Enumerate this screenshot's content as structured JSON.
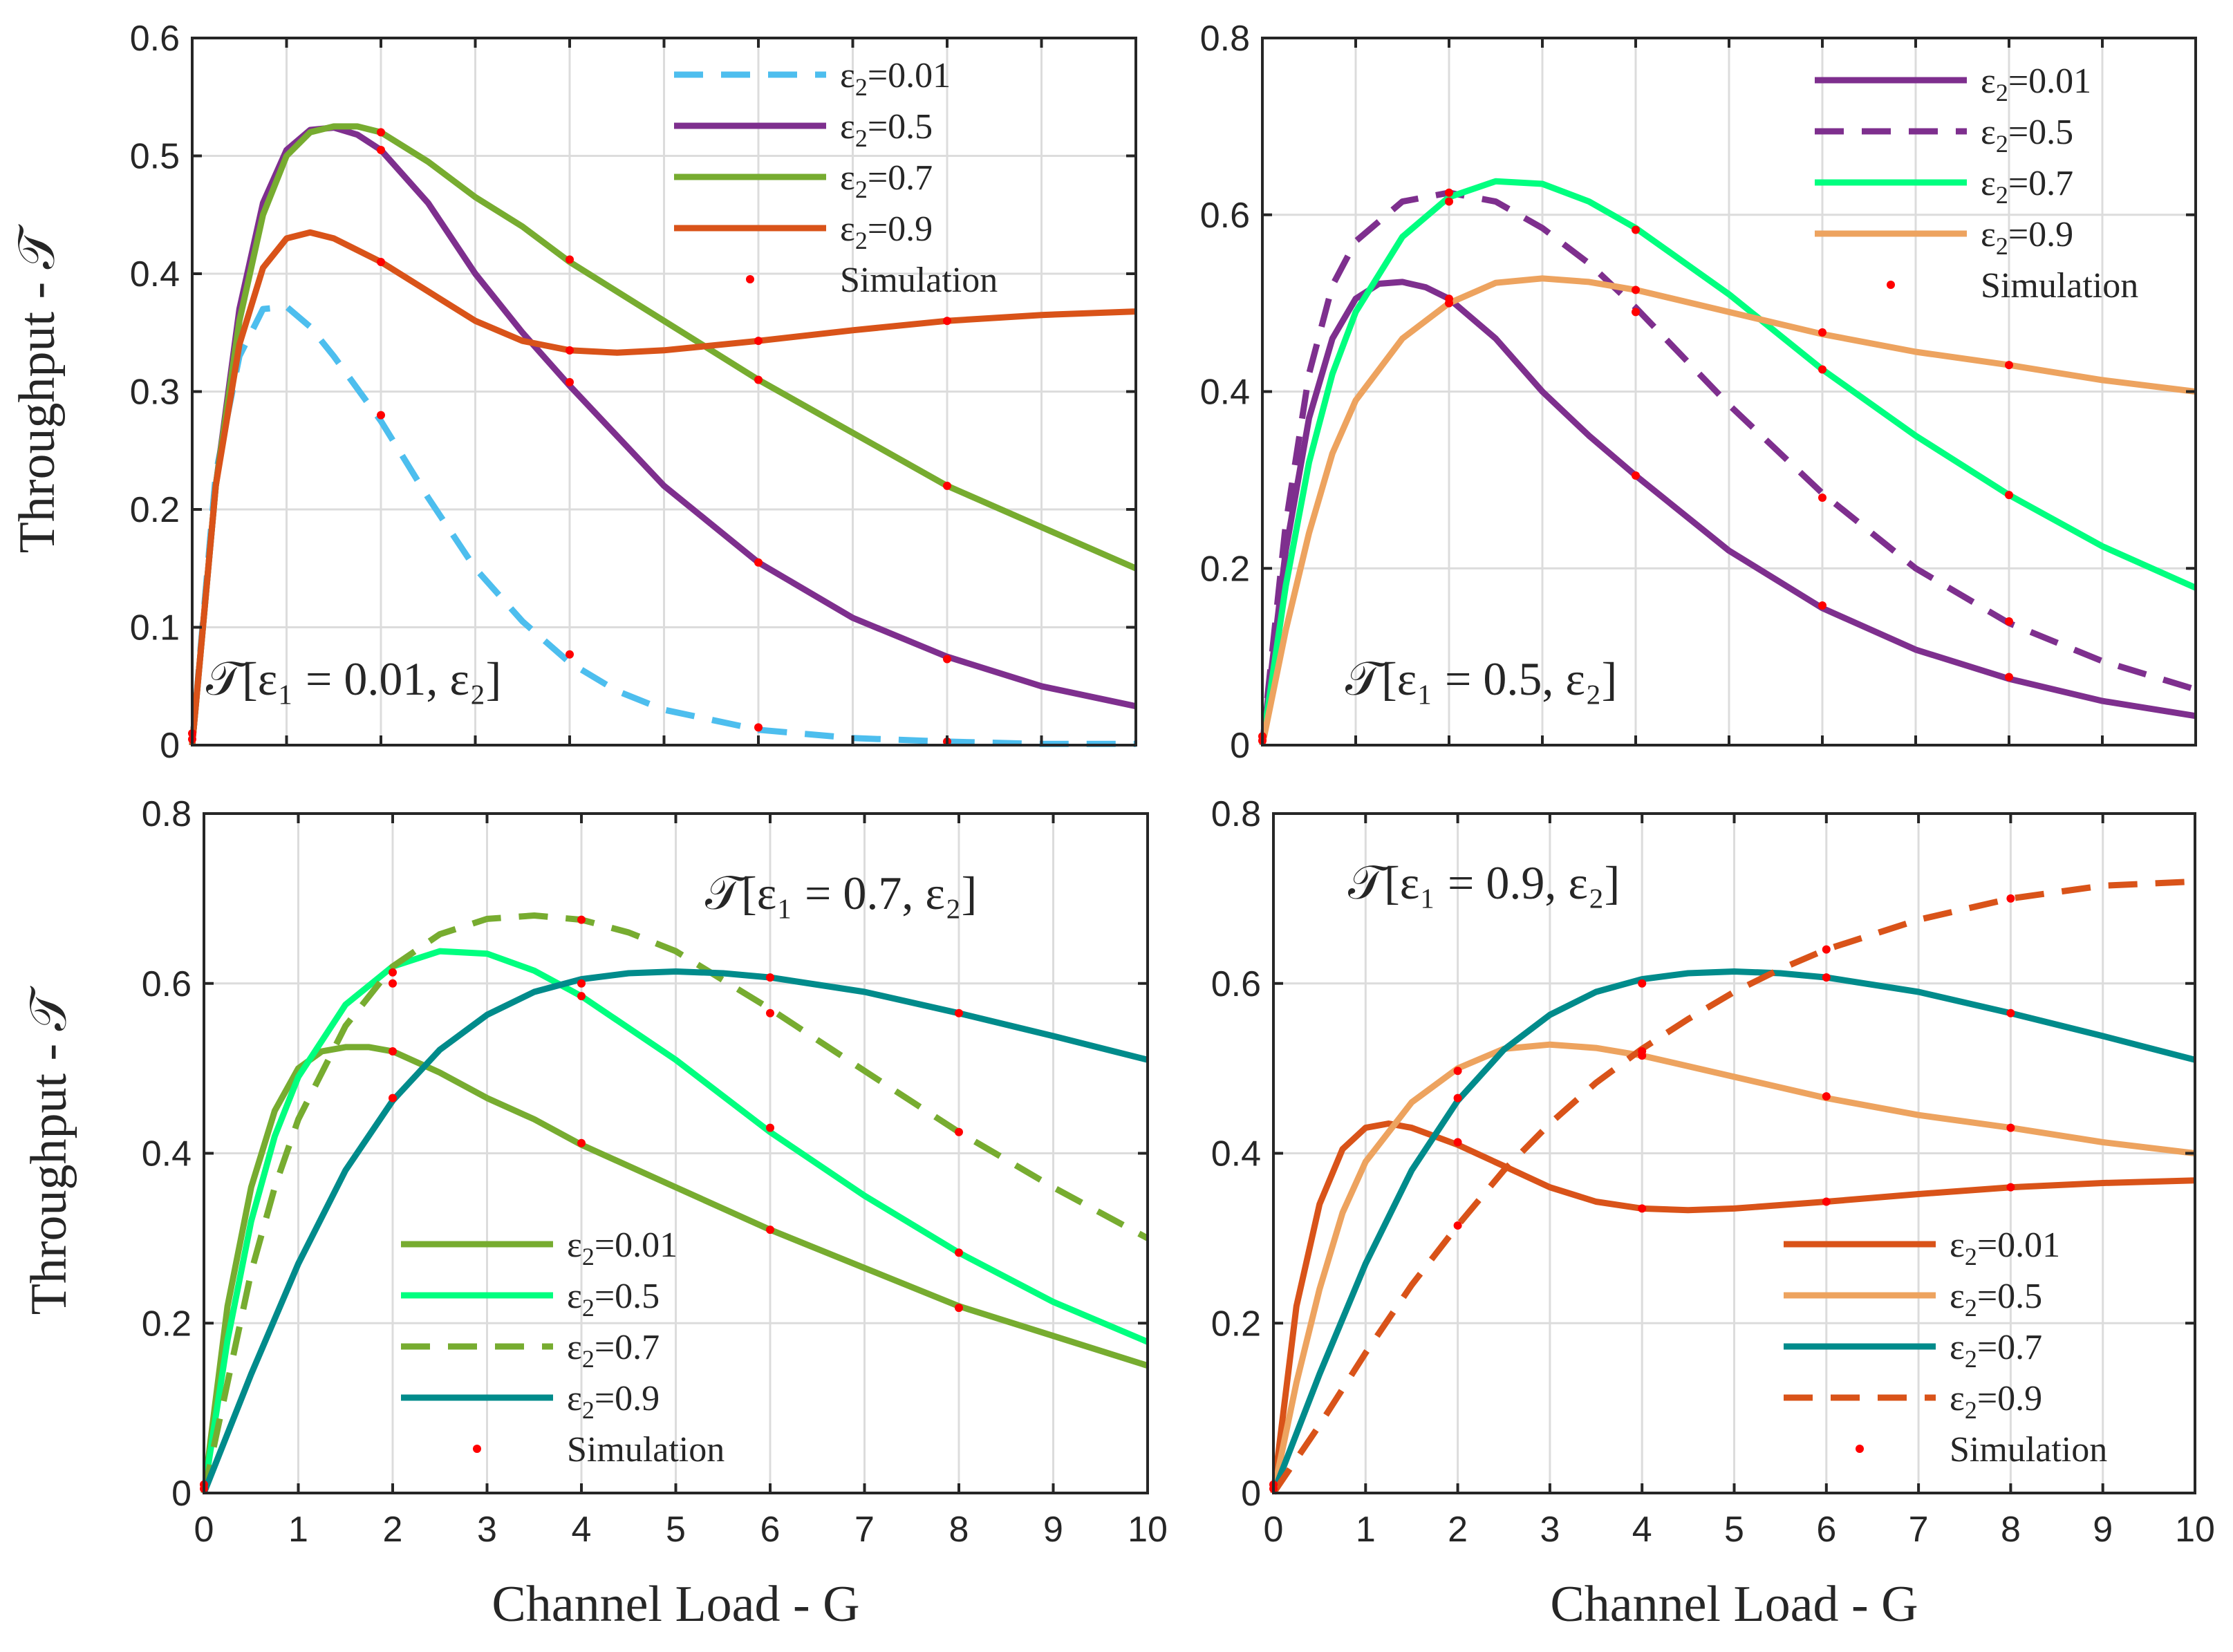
{
  "figure_title": "",
  "legend_prefix": "ε",
  "legend_subscript": "2",
  "legend_eq": "=",
  "chart_data": [
    {
      "type": "line",
      "annotation": "𝒯[ε₁ = 0.01, ε₂]",
      "title": "",
      "xlabel": "",
      "ylabel": "Throughput - 𝒯",
      "xlim": [
        0,
        10
      ],
      "ylim": [
        0,
        0.6
      ],
      "xticks": [
        0,
        1,
        2,
        3,
        4,
        5,
        6,
        7,
        8,
        9,
        10
      ],
      "yticks": [
        0,
        0.1,
        0.2,
        0.3,
        0.4,
        0.5,
        0.6
      ],
      "xtick_labels_shown": false,
      "legend_position": "top-right",
      "legend_simulation_label": "Simulation",
      "series": [
        {
          "name": "0.01",
          "color": "#4DBEEE",
          "style": "dashed",
          "x": [
            0,
            0.25,
            0.5,
            0.75,
            1,
            1.25,
            1.5,
            2,
            2.5,
            3,
            3.5,
            4,
            4.5,
            5,
            6,
            7,
            8,
            9,
            10
          ],
          "y": [
            0,
            0.23,
            0.33,
            0.37,
            0.372,
            0.355,
            0.33,
            0.275,
            0.21,
            0.15,
            0.105,
            0.07,
            0.046,
            0.03,
            0.013,
            0.006,
            0.003,
            0.001,
            0.001
          ]
        },
        {
          "name": "0.5",
          "color": "#7E2F8E",
          "style": "solid",
          "x": [
            0,
            0.25,
            0.5,
            0.75,
            1,
            1.25,
            1.5,
            1.75,
            2,
            2.5,
            3,
            3.5,
            4,
            5,
            6,
            7,
            8,
            9,
            10
          ],
          "y": [
            0,
            0.22,
            0.37,
            0.46,
            0.505,
            0.522,
            0.524,
            0.518,
            0.505,
            0.46,
            0.4,
            0.35,
            0.305,
            0.22,
            0.155,
            0.108,
            0.075,
            0.05,
            0.033
          ]
        },
        {
          "name": "0.7",
          "color": "#77AC30",
          "style": "solid",
          "x": [
            0,
            0.25,
            0.5,
            0.75,
            1,
            1.25,
            1.5,
            1.75,
            2,
            2.5,
            3,
            3.5,
            4,
            5,
            6,
            7,
            8,
            9,
            10
          ],
          "y": [
            0,
            0.22,
            0.36,
            0.45,
            0.5,
            0.52,
            0.525,
            0.525,
            0.52,
            0.495,
            0.465,
            0.44,
            0.41,
            0.36,
            0.31,
            0.265,
            0.22,
            0.185,
            0.15
          ]
        },
        {
          "name": "0.9",
          "color": "#D95319",
          "style": "solid",
          "x": [
            0,
            0.25,
            0.5,
            0.75,
            1,
            1.25,
            1.5,
            2,
            2.5,
            3,
            3.5,
            4,
            4.5,
            5,
            6,
            7,
            8,
            9,
            10
          ],
          "y": [
            0,
            0.22,
            0.34,
            0.405,
            0.43,
            0.435,
            0.43,
            0.41,
            0.385,
            0.36,
            0.343,
            0.335,
            0.333,
            0.335,
            0.343,
            0.352,
            0.36,
            0.365,
            0.368
          ]
        }
      ],
      "simulation_points": [
        {
          "x": 0,
          "y": 0.01
        },
        {
          "x": 0,
          "y": 0.005
        },
        {
          "x": 2,
          "y": 0.28
        },
        {
          "x": 2,
          "y": 0.41
        },
        {
          "x": 2,
          "y": 0.505
        },
        {
          "x": 2,
          "y": 0.52
        },
        {
          "x": 4,
          "y": 0.077
        },
        {
          "x": 4,
          "y": 0.308
        },
        {
          "x": 4,
          "y": 0.335
        },
        {
          "x": 4,
          "y": 0.412
        },
        {
          "x": 6,
          "y": 0.015
        },
        {
          "x": 6,
          "y": 0.155
        },
        {
          "x": 6,
          "y": 0.31
        },
        {
          "x": 6,
          "y": 0.343
        },
        {
          "x": 8,
          "y": 0.003
        },
        {
          "x": 8,
          "y": 0.073
        },
        {
          "x": 8,
          "y": 0.22
        },
        {
          "x": 8,
          "y": 0.36
        }
      ]
    },
    {
      "type": "line",
      "annotation": "𝒯[ε₁ = 0.5, ε₂]",
      "title": "",
      "xlabel": "",
      "ylabel": "",
      "xlim": [
        0,
        10
      ],
      "ylim": [
        0,
        0.8
      ],
      "xticks": [
        0,
        1,
        2,
        3,
        4,
        5,
        6,
        7,
        8,
        9,
        10
      ],
      "yticks": [
        0,
        0.2,
        0.4,
        0.6,
        0.8
      ],
      "xtick_labels_shown": false,
      "legend_position": "top-right",
      "legend_simulation_label": "Simulation",
      "series": [
        {
          "name": "0.01",
          "color": "#7E2F8E",
          "style": "solid",
          "x": [
            0,
            0.25,
            0.5,
            0.75,
            1,
            1.25,
            1.5,
            1.75,
            2,
            2.5,
            3,
            3.5,
            4,
            5,
            6,
            7,
            8,
            9,
            10
          ],
          "y": [
            0,
            0.22,
            0.37,
            0.46,
            0.505,
            0.522,
            0.524,
            0.518,
            0.505,
            0.46,
            0.4,
            0.35,
            0.305,
            0.22,
            0.155,
            0.108,
            0.075,
            0.05,
            0.033
          ]
        },
        {
          "name": "0.5",
          "color": "#7E2F8E",
          "style": "dashed",
          "x": [
            0,
            0.25,
            0.5,
            0.75,
            1,
            1.5,
            2,
            2.5,
            3,
            3.5,
            4,
            5,
            6,
            7,
            8,
            9,
            10
          ],
          "y": [
            0,
            0.25,
            0.42,
            0.52,
            0.57,
            0.615,
            0.625,
            0.615,
            0.585,
            0.545,
            0.495,
            0.385,
            0.285,
            0.2,
            0.138,
            0.095,
            0.063
          ]
        },
        {
          "name": "0.7",
          "color": "#00FF7F",
          "style": "solid",
          "x": [
            0,
            0.25,
            0.5,
            0.75,
            1,
            1.5,
            2,
            2.5,
            3,
            3.5,
            4,
            5,
            6,
            7,
            8,
            9,
            10
          ],
          "y": [
            0,
            0.18,
            0.32,
            0.42,
            0.49,
            0.575,
            0.62,
            0.638,
            0.635,
            0.615,
            0.585,
            0.51,
            0.425,
            0.35,
            0.283,
            0.225,
            0.178
          ]
        },
        {
          "name": "0.9",
          "color": "#EDA35F",
          "style": "solid",
          "x": [
            0,
            0.25,
            0.5,
            0.75,
            1,
            1.5,
            2,
            2.5,
            3,
            3.5,
            4,
            5,
            6,
            7,
            8,
            9,
            10
          ],
          "y": [
            0,
            0.13,
            0.24,
            0.33,
            0.39,
            0.46,
            0.5,
            0.523,
            0.528,
            0.524,
            0.515,
            0.49,
            0.465,
            0.445,
            0.43,
            0.413,
            0.4
          ]
        }
      ],
      "simulation_points": [
        {
          "x": 0,
          "y": 0.01
        },
        {
          "x": 0,
          "y": 0.005
        },
        {
          "x": 2,
          "y": 0.5
        },
        {
          "x": 2,
          "y": 0.505
        },
        {
          "x": 2,
          "y": 0.615
        },
        {
          "x": 2,
          "y": 0.625
        },
        {
          "x": 4,
          "y": 0.305
        },
        {
          "x": 4,
          "y": 0.49
        },
        {
          "x": 4,
          "y": 0.515
        },
        {
          "x": 4,
          "y": 0.583
        },
        {
          "x": 6,
          "y": 0.158
        },
        {
          "x": 6,
          "y": 0.28
        },
        {
          "x": 6,
          "y": 0.425
        },
        {
          "x": 6,
          "y": 0.467
        },
        {
          "x": 8,
          "y": 0.077
        },
        {
          "x": 8,
          "y": 0.14
        },
        {
          "x": 8,
          "y": 0.283
        },
        {
          "x": 8,
          "y": 0.43
        }
      ]
    },
    {
      "type": "line",
      "annotation": "𝒯[ε₁ = 0.7, ε₂]",
      "title": "",
      "xlabel": "Channel Load - G",
      "ylabel": "Throughput - 𝒯",
      "xlim": [
        0,
        10
      ],
      "ylim": [
        0,
        0.8
      ],
      "xticks": [
        0,
        1,
        2,
        3,
        4,
        5,
        6,
        7,
        8,
        9,
        10
      ],
      "yticks": [
        0,
        0.2,
        0.4,
        0.6,
        0.8
      ],
      "xtick_labels_shown": true,
      "legend_position": "bottom-left",
      "legend_simulation_label": "Simulation",
      "series": [
        {
          "name": "0.01",
          "color": "#77AC30",
          "style": "solid",
          "x": [
            0,
            0.25,
            0.5,
            0.75,
            1,
            1.25,
            1.5,
            1.75,
            2,
            2.5,
            3,
            3.5,
            4,
            5,
            6,
            7,
            8,
            9,
            10
          ],
          "y": [
            0,
            0.22,
            0.36,
            0.45,
            0.5,
            0.52,
            0.525,
            0.525,
            0.52,
            0.495,
            0.465,
            0.44,
            0.41,
            0.36,
            0.31,
            0.265,
            0.22,
            0.185,
            0.15
          ]
        },
        {
          "name": "0.5",
          "color": "#00FF7F",
          "style": "solid",
          "x": [
            0,
            0.25,
            0.5,
            0.75,
            1,
            1.5,
            2,
            2.5,
            3,
            3.5,
            4,
            5,
            6,
            7,
            8,
            9,
            10
          ],
          "y": [
            0,
            0.18,
            0.32,
            0.42,
            0.49,
            0.575,
            0.62,
            0.638,
            0.635,
            0.615,
            0.585,
            0.51,
            0.425,
            0.35,
            0.283,
            0.225,
            0.178
          ]
        },
        {
          "name": "0.7",
          "color": "#77AC30",
          "style": "dashed",
          "x": [
            0,
            0.25,
            0.5,
            0.75,
            1,
            1.5,
            2,
            2.5,
            3,
            3.5,
            4,
            4.5,
            5,
            6,
            7,
            8,
            9,
            10
          ],
          "y": [
            0,
            0.13,
            0.26,
            0.36,
            0.44,
            0.55,
            0.62,
            0.658,
            0.676,
            0.68,
            0.675,
            0.66,
            0.638,
            0.57,
            0.497,
            0.425,
            0.36,
            0.3
          ]
        },
        {
          "name": "0.9",
          "color": "#008B8B",
          "style": "solid",
          "x": [
            0,
            0.5,
            1,
            1.5,
            2,
            2.5,
            3,
            3.5,
            4,
            4.5,
            5,
            5.5,
            6,
            7,
            8,
            9,
            10
          ],
          "y": [
            0,
            0.14,
            0.27,
            0.38,
            0.462,
            0.522,
            0.563,
            0.59,
            0.605,
            0.612,
            0.614,
            0.612,
            0.607,
            0.59,
            0.565,
            0.538,
            0.51
          ]
        }
      ],
      "simulation_points": [
        {
          "x": 0,
          "y": 0.01
        },
        {
          "x": 0,
          "y": 0.005
        },
        {
          "x": 2,
          "y": 0.465
        },
        {
          "x": 2,
          "y": 0.52
        },
        {
          "x": 2,
          "y": 0.6
        },
        {
          "x": 2,
          "y": 0.613
        },
        {
          "x": 4,
          "y": 0.412
        },
        {
          "x": 4,
          "y": 0.585
        },
        {
          "x": 4,
          "y": 0.6
        },
        {
          "x": 4,
          "y": 0.675
        },
        {
          "x": 6,
          "y": 0.31
        },
        {
          "x": 6,
          "y": 0.43
        },
        {
          "x": 6,
          "y": 0.565
        },
        {
          "x": 6,
          "y": 0.607
        },
        {
          "x": 8,
          "y": 0.218
        },
        {
          "x": 8,
          "y": 0.283
        },
        {
          "x": 8,
          "y": 0.425
        },
        {
          "x": 8,
          "y": 0.565
        }
      ]
    },
    {
      "type": "line",
      "annotation": "𝒯[ε₁ = 0.9, ε₂]",
      "title": "",
      "xlabel": "Channel Load - G",
      "ylabel": "",
      "xlim": [
        0,
        10
      ],
      "ylim": [
        0,
        0.8
      ],
      "xticks": [
        0,
        1,
        2,
        3,
        4,
        5,
        6,
        7,
        8,
        9,
        10
      ],
      "yticks": [
        0,
        0.2,
        0.4,
        0.6,
        0.8
      ],
      "xtick_labels_shown": true,
      "legend_position": "bottom-right",
      "legend_simulation_label": "Simulation",
      "series": [
        {
          "name": "0.01",
          "color": "#D95319",
          "style": "solid",
          "x": [
            0,
            0.25,
            0.5,
            0.75,
            1,
            1.25,
            1.5,
            2,
            2.5,
            3,
            3.5,
            4,
            4.5,
            5,
            6,
            7,
            8,
            9,
            10
          ],
          "y": [
            0,
            0.22,
            0.34,
            0.405,
            0.43,
            0.435,
            0.43,
            0.41,
            0.385,
            0.36,
            0.343,
            0.335,
            0.333,
            0.335,
            0.343,
            0.352,
            0.36,
            0.365,
            0.368
          ]
        },
        {
          "name": "0.5",
          "color": "#EDA35F",
          "style": "solid",
          "x": [
            0,
            0.25,
            0.5,
            0.75,
            1,
            1.5,
            2,
            2.5,
            3,
            3.5,
            4,
            5,
            6,
            7,
            8,
            9,
            10
          ],
          "y": [
            0,
            0.13,
            0.24,
            0.33,
            0.39,
            0.46,
            0.5,
            0.523,
            0.528,
            0.524,
            0.515,
            0.49,
            0.465,
            0.445,
            0.43,
            0.413,
            0.4
          ]
        },
        {
          "name": "0.7",
          "color": "#008B8B",
          "style": "solid",
          "x": [
            0,
            0.5,
            1,
            1.5,
            2,
            2.5,
            3,
            3.5,
            4,
            4.5,
            5,
            5.5,
            6,
            7,
            8,
            9,
            10
          ],
          "y": [
            0,
            0.14,
            0.27,
            0.38,
            0.462,
            0.522,
            0.563,
            0.59,
            0.605,
            0.612,
            0.614,
            0.612,
            0.607,
            0.59,
            0.565,
            0.538,
            0.51
          ]
        },
        {
          "name": "0.9",
          "color": "#D95319",
          "style": "dashed",
          "x": [
            0,
            0.5,
            1,
            1.5,
            2,
            2.5,
            3,
            3.5,
            4,
            4.5,
            5,
            5.5,
            6,
            7,
            8,
            9,
            10
          ],
          "y": [
            0,
            0.08,
            0.165,
            0.245,
            0.315,
            0.38,
            0.435,
            0.483,
            0.523,
            0.558,
            0.59,
            0.617,
            0.64,
            0.675,
            0.7,
            0.715,
            0.72
          ]
        }
      ],
      "simulation_points": [
        {
          "x": 0,
          "y": 0.01
        },
        {
          "x": 0,
          "y": 0.005
        },
        {
          "x": 2,
          "y": 0.315
        },
        {
          "x": 2,
          "y": 0.413
        },
        {
          "x": 2,
          "y": 0.465
        },
        {
          "x": 2,
          "y": 0.497
        },
        {
          "x": 4,
          "y": 0.335
        },
        {
          "x": 4,
          "y": 0.515
        },
        {
          "x": 4,
          "y": 0.52
        },
        {
          "x": 4,
          "y": 0.6
        },
        {
          "x": 6,
          "y": 0.343
        },
        {
          "x": 6,
          "y": 0.467
        },
        {
          "x": 6,
          "y": 0.607
        },
        {
          "x": 6,
          "y": 0.64
        },
        {
          "x": 8,
          "y": 0.36
        },
        {
          "x": 8,
          "y": 0.43
        },
        {
          "x": 8,
          "y": 0.565
        },
        {
          "x": 8,
          "y": 0.7
        }
      ]
    }
  ]
}
